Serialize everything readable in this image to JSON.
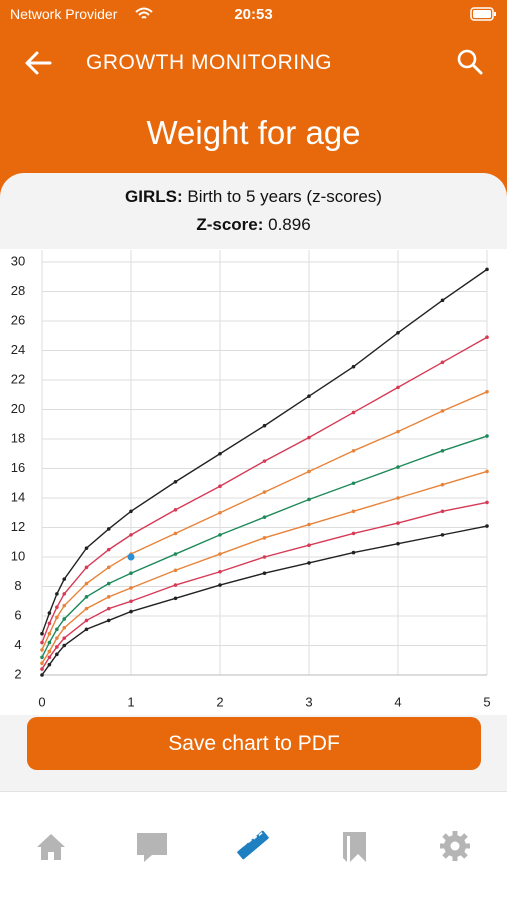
{
  "status_bar": {
    "carrier": "Network Provider",
    "time": "20:53"
  },
  "header": {
    "title": "GROWTH MONITORING",
    "page_title": "Weight for age"
  },
  "info": {
    "group": "GIRLS:",
    "range": "Birth to 5 years (z-scores)",
    "zscore_label": "Z-score:",
    "zscore_value": 0.896
  },
  "chart_data": {
    "type": "line",
    "x": [
      0,
      0.083,
      0.167,
      0.25,
      0.5,
      0.75,
      1,
      1.5,
      2,
      2.5,
      3,
      3.5,
      4,
      4.5,
      5
    ],
    "xlim": [
      0,
      5
    ],
    "xticks": [
      0,
      1,
      2,
      3,
      4,
      5
    ],
    "ylim": [
      2,
      30
    ],
    "yticks": [
      2,
      4,
      6,
      8,
      10,
      12,
      14,
      16,
      18,
      20,
      22,
      24,
      26,
      28,
      30
    ],
    "grid": true,
    "series": [
      {
        "color": "#222222",
        "values": [
          4.8,
          6.2,
          7.5,
          8.5,
          10.6,
          11.9,
          13.1,
          15.1,
          17.0,
          18.9,
          20.9,
          22.9,
          25.2,
          27.4,
          29.5
        ]
      },
      {
        "color": "#d63a55",
        "values": [
          4.2,
          5.5,
          6.6,
          7.5,
          9.3,
          10.5,
          11.5,
          13.2,
          14.8,
          16.5,
          18.1,
          19.8,
          21.5,
          23.2,
          24.9
        ]
      },
      {
        "color": "#e8833a",
        "values": [
          3.7,
          4.8,
          5.9,
          6.7,
          8.2,
          9.3,
          10.2,
          11.6,
          13.0,
          14.4,
          15.8,
          17.2,
          18.5,
          19.9,
          21.2
        ]
      },
      {
        "color": "#1e8a5a",
        "values": [
          3.2,
          4.2,
          5.1,
          5.8,
          7.3,
          8.2,
          8.9,
          10.2,
          11.5,
          12.7,
          13.9,
          15.0,
          16.1,
          17.2,
          18.2
        ]
      },
      {
        "color": "#e8833a",
        "values": [
          2.8,
          3.6,
          4.5,
          5.2,
          6.5,
          7.3,
          7.9,
          9.1,
          10.2,
          11.3,
          12.2,
          13.1,
          14.0,
          14.9,
          15.8
        ]
      },
      {
        "color": "#d63a55",
        "values": [
          2.4,
          3.2,
          3.9,
          4.5,
          5.7,
          6.5,
          7.0,
          8.1,
          9.0,
          10.0,
          10.8,
          11.6,
          12.3,
          13.1,
          13.7
        ]
      },
      {
        "color": "#222222",
        "values": [
          2.0,
          2.7,
          3.4,
          4.0,
          5.1,
          5.7,
          6.3,
          7.2,
          8.1,
          8.9,
          9.6,
          10.3,
          10.9,
          11.5,
          12.1
        ]
      }
    ],
    "point": {
      "x": 1,
      "y": 10.0,
      "color": "#2b8fd6"
    }
  },
  "button": "Save chart to PDF"
}
